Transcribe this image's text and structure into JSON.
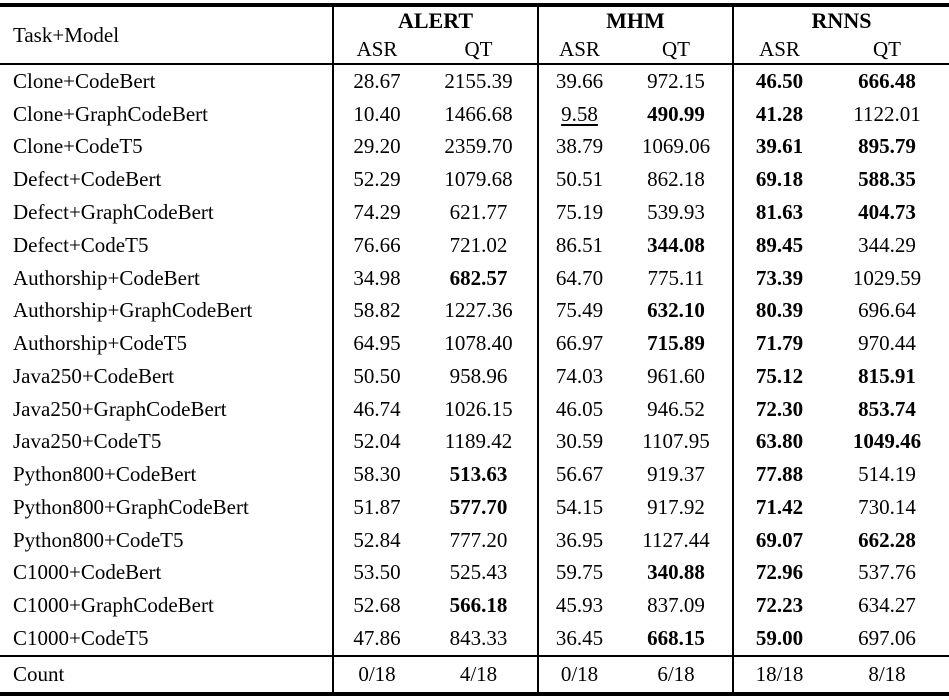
{
  "colors": {
    "background": "#ffffff",
    "text": "#000000",
    "rule": "#000000"
  },
  "table": {
    "corner_header": "Task+Model",
    "groups": [
      {
        "label": "ALERT",
        "sub": [
          "ASR",
          "QT"
        ]
      },
      {
        "label": "MHM",
        "sub": [
          "ASR",
          "QT"
        ]
      },
      {
        "label": "RNNS",
        "sub": [
          "ASR",
          "QT"
        ]
      }
    ],
    "rows": [
      {
        "label": "Clone+CodeBert",
        "cells": [
          {
            "v": "28.67"
          },
          {
            "v": "2155.39"
          },
          {
            "v": "39.66"
          },
          {
            "v": "972.15"
          },
          {
            "v": "46.50",
            "b": true
          },
          {
            "v": "666.48",
            "b": true
          }
        ]
      },
      {
        "label": "Clone+GraphCodeBert",
        "cells": [
          {
            "v": "10.40"
          },
          {
            "v": "1466.68"
          },
          {
            "v": "9.58",
            "u": true
          },
          {
            "v": "490.99",
            "b": true
          },
          {
            "v": "41.28",
            "b": true
          },
          {
            "v": "1122.01"
          }
        ]
      },
      {
        "label": "Clone+CodeT5",
        "cells": [
          {
            "v": "29.20"
          },
          {
            "v": "2359.70"
          },
          {
            "v": "38.79"
          },
          {
            "v": "1069.06"
          },
          {
            "v": "39.61",
            "b": true
          },
          {
            "v": "895.79",
            "b": true
          }
        ]
      },
      {
        "label": "Defect+CodeBert",
        "cells": [
          {
            "v": "52.29"
          },
          {
            "v": "1079.68"
          },
          {
            "v": "50.51"
          },
          {
            "v": "862.18"
          },
          {
            "v": "69.18",
            "b": true
          },
          {
            "v": "588.35",
            "b": true
          }
        ]
      },
      {
        "label": "Defect+GraphCodeBert",
        "cells": [
          {
            "v": "74.29"
          },
          {
            "v": "621.77"
          },
          {
            "v": "75.19"
          },
          {
            "v": "539.93"
          },
          {
            "v": "81.63",
            "b": true
          },
          {
            "v": "404.73",
            "b": true
          }
        ]
      },
      {
        "label": "Defect+CodeT5",
        "cells": [
          {
            "v": "76.66"
          },
          {
            "v": "721.02"
          },
          {
            "v": "86.51"
          },
          {
            "v": "344.08",
            "b": true
          },
          {
            "v": "89.45",
            "b": true
          },
          {
            "v": "344.29"
          }
        ]
      },
      {
        "label": "Authorship+CodeBert",
        "cells": [
          {
            "v": "34.98"
          },
          {
            "v": "682.57",
            "b": true
          },
          {
            "v": "64.70"
          },
          {
            "v": "775.11"
          },
          {
            "v": "73.39",
            "b": true
          },
          {
            "v": "1029.59"
          }
        ]
      },
      {
        "label": "Authorship+GraphCodeBert",
        "cells": [
          {
            "v": "58.82"
          },
          {
            "v": "1227.36"
          },
          {
            "v": "75.49"
          },
          {
            "v": "632.10",
            "b": true
          },
          {
            "v": "80.39",
            "b": true
          },
          {
            "v": "696.64"
          }
        ]
      },
      {
        "label": "Authorship+CodeT5",
        "cells": [
          {
            "v": "64.95"
          },
          {
            "v": "1078.40"
          },
          {
            "v": "66.97"
          },
          {
            "v": "715.89",
            "b": true
          },
          {
            "v": "71.79",
            "b": true
          },
          {
            "v": "970.44"
          }
        ]
      },
      {
        "label": "Java250+CodeBert",
        "cells": [
          {
            "v": "50.50"
          },
          {
            "v": "958.96"
          },
          {
            "v": "74.03"
          },
          {
            "v": "961.60"
          },
          {
            "v": "75.12",
            "b": true
          },
          {
            "v": "815.91",
            "b": true
          }
        ]
      },
      {
        "label": "Java250+GraphCodeBert",
        "cells": [
          {
            "v": "46.74"
          },
          {
            "v": "1026.15"
          },
          {
            "v": "46.05"
          },
          {
            "v": "946.52"
          },
          {
            "v": "72.30",
            "b": true
          },
          {
            "v": "853.74",
            "b": true
          }
        ]
      },
      {
        "label": "Java250+CodeT5",
        "cells": [
          {
            "v": "52.04"
          },
          {
            "v": "1189.42"
          },
          {
            "v": "30.59"
          },
          {
            "v": "1107.95"
          },
          {
            "v": "63.80",
            "b": true
          },
          {
            "v": "1049.46",
            "b": true
          }
        ]
      },
      {
        "label": "Python800+CodeBert",
        "cells": [
          {
            "v": "58.30"
          },
          {
            "v": "513.63",
            "b": true
          },
          {
            "v": "56.67"
          },
          {
            "v": "919.37"
          },
          {
            "v": "77.88",
            "b": true
          },
          {
            "v": "514.19"
          }
        ]
      },
      {
        "label": "Python800+GraphCodeBert",
        "cells": [
          {
            "v": "51.87"
          },
          {
            "v": "577.70",
            "b": true
          },
          {
            "v": "54.15"
          },
          {
            "v": "917.92"
          },
          {
            "v": "71.42",
            "b": true
          },
          {
            "v": "730.14"
          }
        ]
      },
      {
        "label": "Python800+CodeT5",
        "cells": [
          {
            "v": "52.84"
          },
          {
            "v": "777.20"
          },
          {
            "v": "36.95"
          },
          {
            "v": "1127.44"
          },
          {
            "v": "69.07",
            "b": true
          },
          {
            "v": "662.28",
            "b": true
          }
        ]
      },
      {
        "label": "C1000+CodeBert",
        "cells": [
          {
            "v": "53.50"
          },
          {
            "v": "525.43"
          },
          {
            "v": "59.75"
          },
          {
            "v": "340.88",
            "b": true
          },
          {
            "v": "72.96",
            "b": true
          },
          {
            "v": "537.76"
          }
        ]
      },
      {
        "label": "C1000+GraphCodeBert",
        "cells": [
          {
            "v": "52.68"
          },
          {
            "v": "566.18",
            "b": true
          },
          {
            "v": "45.93"
          },
          {
            "v": "837.09"
          },
          {
            "v": "72.23",
            "b": true
          },
          {
            "v": "634.27"
          }
        ]
      },
      {
        "label": "C1000+CodeT5",
        "cells": [
          {
            "v": "47.86"
          },
          {
            "v": "843.33"
          },
          {
            "v": "36.45"
          },
          {
            "v": "668.15",
            "b": true
          },
          {
            "v": "59.00",
            "b": true
          },
          {
            "v": "697.06"
          }
        ]
      }
    ],
    "count_row": {
      "label": "Count",
      "cells": [
        {
          "v": "0/18"
        },
        {
          "v": "4/18"
        },
        {
          "v": "0/18"
        },
        {
          "v": "6/18"
        },
        {
          "v": "18/18"
        },
        {
          "v": "8/18"
        }
      ]
    }
  }
}
